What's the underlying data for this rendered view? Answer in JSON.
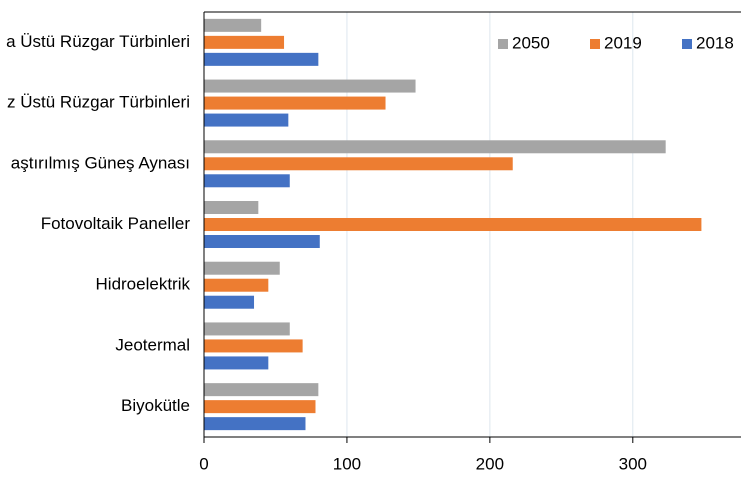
{
  "chart_data": {
    "type": "bar",
    "orientation": "horizontal",
    "categories": [
      "a Üstü Rüzgar Türbinleri",
      "z Üstü Rüzgar Türbinleri",
      "aştırılmış Güneş Aynası",
      "Fotovoltaik Paneller",
      "Hidroelektrik",
      "Jeotermal",
      "Biyokütle"
    ],
    "series": [
      {
        "name": "2050",
        "color": "#a5a5a5",
        "values": [
          40,
          148,
          323,
          38,
          53,
          60,
          80
        ]
      },
      {
        "name": "2019",
        "color": "#ed7d31",
        "values": [
          56,
          127,
          216,
          348,
          45,
          69,
          78
        ]
      },
      {
        "name": "2018",
        "color": "#4472c4",
        "values": [
          80,
          59,
          60,
          81,
          35,
          45,
          71
        ]
      }
    ],
    "xlim": [
      0,
      375
    ],
    "xticks": [
      0,
      100,
      200,
      300
    ],
    "grid": true,
    "legend": "upper right"
  }
}
